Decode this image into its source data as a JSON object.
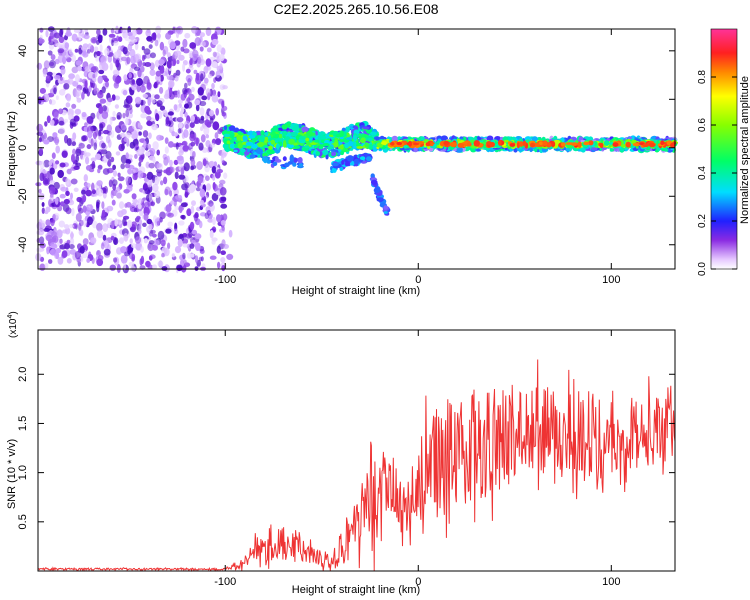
{
  "title": "C2E2.2025.265.10.56.E08",
  "chart_data": [
    {
      "type": "heatmap",
      "name": "spectrogram",
      "xlabel": "Height of straight line (km)",
      "ylabel": "Frequency (Hz)",
      "xlim": [
        -197,
        133
      ],
      "ylim": [
        -50,
        49
      ],
      "xticks": [
        -100,
        0,
        100
      ],
      "xtick_labels": [
        "-100",
        "0",
        "100"
      ],
      "yticks": [
        -40,
        -20,
        0,
        20,
        40
      ],
      "ytick_labels": [
        "-40",
        "-20",
        "0",
        "20",
        "40"
      ],
      "noise_region_x": [
        -197,
        -100
      ],
      "colorbar": {
        "label": "Normalized spectral amplitude",
        "range": [
          0,
          1
        ],
        "ticks": [
          0.0,
          0.2,
          0.4,
          0.6,
          0.8
        ],
        "tick_labels": [
          "0.0",
          "0.2",
          "0.4",
          "0.6",
          "0.8"
        ]
      }
    },
    {
      "type": "line",
      "name": "snr",
      "xlabel": "Height of straight line (km)",
      "ylabel": "SNR (10 * v/v)",
      "multiplier": "(x10",
      "multiplier_exp": "4",
      "multiplier_close": ")",
      "xlim": [
        -197,
        133
      ],
      "ylim": [
        0,
        2.45
      ],
      "xticks": [
        -100,
        0,
        100
      ],
      "xtick_labels": [
        "-100",
        "0",
        "100"
      ],
      "yticks": [
        0.5,
        1.0,
        1.5,
        2.0
      ],
      "ytick_labels": [
        "0.5",
        "1.0",
        "1.5",
        "2.0"
      ],
      "color": "#ee3333",
      "envelope": {
        "x": [
          -197,
          -100,
          -92,
          -85,
          -78,
          -70,
          -60,
          -50,
          -42,
          -35,
          -28,
          -22,
          -15,
          -8,
          0,
          10,
          20,
          40,
          60,
          80,
          100,
          120,
          133
        ],
        "mean": [
          0.02,
          0.02,
          0.06,
          0.25,
          0.3,
          0.28,
          0.2,
          0.12,
          0.18,
          0.4,
          0.62,
          0.72,
          0.85,
          0.6,
          0.8,
          1.1,
          1.2,
          1.35,
          1.45,
          1.42,
          1.4,
          1.42,
          1.4
        ],
        "amp": [
          0.01,
          0.01,
          0.05,
          0.16,
          0.2,
          0.18,
          0.12,
          0.08,
          0.14,
          0.3,
          0.4,
          0.45,
          0.4,
          0.4,
          0.55,
          0.6,
          0.6,
          0.55,
          0.45,
          0.45,
          0.4,
          0.35,
          0.35
        ]
      }
    }
  ]
}
